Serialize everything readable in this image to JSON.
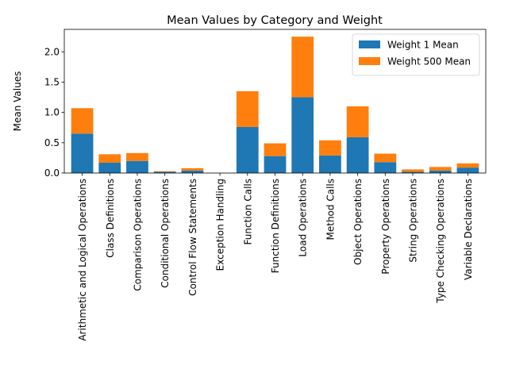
{
  "chart_data": {
    "type": "bar",
    "stacked": true,
    "title": "Mean Values by Category and Weight",
    "xlabel": "",
    "ylabel": "Mean Values",
    "ylim": [
      0,
      2.37
    ],
    "yticks": [
      "0.0",
      "0.5",
      "1.0",
      "1.5",
      "2.0"
    ],
    "grid": false,
    "legend_position": "top-right",
    "categories": [
      "Arithmetic and Logical Operations",
      "Class Definitions",
      "Comparison Operations",
      "Conditional Operations",
      "Control Flow Statements",
      "Exception Handling",
      "Function Calls",
      "Function Definitions",
      "Load Operations",
      "Method Calls",
      "Object Operations",
      "Property Operations",
      "String Operations",
      "Type Checking Operations",
      "Variable Declarations"
    ],
    "series": [
      {
        "name": "Weight 1 Mean",
        "color": "#1f77b4",
        "values": [
          0.65,
          0.17,
          0.2,
          0.02,
          0.04,
          0.0,
          0.76,
          0.28,
          1.25,
          0.29,
          0.59,
          0.18,
          0.02,
          0.04,
          0.09
        ]
      },
      {
        "name": "Weight 500 Mean",
        "color": "#ff7f0e",
        "values": [
          0.42,
          0.14,
          0.13,
          0.01,
          0.04,
          0.0,
          0.59,
          0.21,
          1.0,
          0.25,
          0.51,
          0.14,
          0.04,
          0.06,
          0.07
        ]
      }
    ]
  }
}
